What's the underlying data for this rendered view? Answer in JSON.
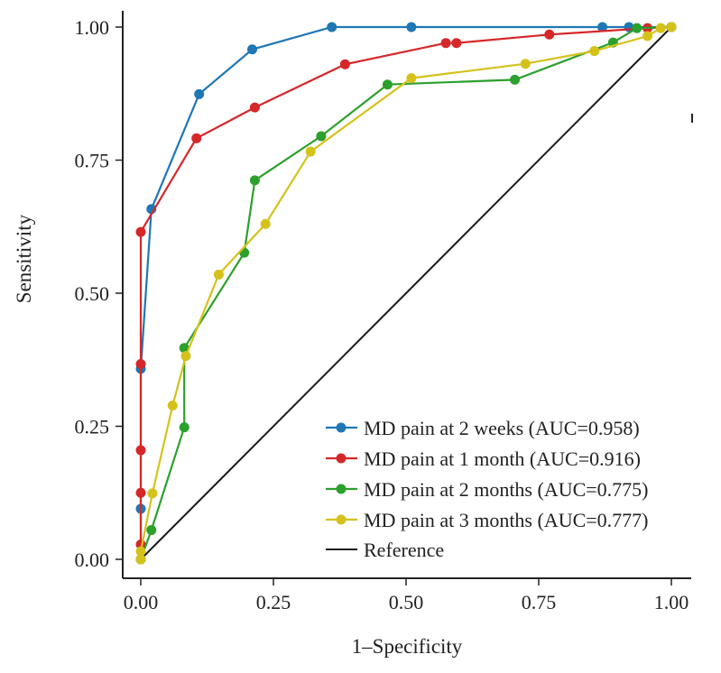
{
  "chart_data": {
    "type": "line",
    "title": "",
    "xlabel": "1–Specificity",
    "ylabel": "Sensitivity",
    "xlim": [
      0,
      1
    ],
    "ylim": [
      0,
      1
    ],
    "x_ticks": [
      "0.00",
      "0.25",
      "0.50",
      "0.75",
      "1.00"
    ],
    "y_ticks": [
      "0.00",
      "0.25",
      "0.50",
      "0.75",
      "1.00"
    ],
    "grid": false,
    "legend_position": "bottom-right",
    "series": [
      {
        "name": "MD pain at 2 weeks (AUC=0.958)",
        "color": "#1f77b4",
        "x": [
          0.0,
          0.0,
          0.0,
          0.02,
          0.11,
          0.21,
          0.36,
          0.51,
          0.87,
          0.92,
          1.0
        ],
        "y": [
          0.0,
          0.095,
          0.358,
          0.658,
          0.874,
          0.958,
          1.0,
          1.0,
          1.0,
          1.0,
          1.0
        ]
      },
      {
        "name": "MD pain at 1 month (AUC=0.916)",
        "color": "#d62728",
        "x": [
          0.0,
          0.0,
          0.0,
          0.0,
          0.0,
          0.0,
          0.105,
          0.215,
          0.385,
          0.575,
          0.595,
          0.77,
          0.955,
          1.0
        ],
        "y": [
          0.0,
          0.028,
          0.125,
          0.205,
          0.367,
          0.615,
          0.791,
          0.849,
          0.93,
          0.97,
          0.97,
          0.986,
          0.998,
          1.0
        ]
      },
      {
        "name": "MD pain at 2 months (AUC=0.775)",
        "color": "#2ca02c",
        "x": [
          0.0,
          0.02,
          0.082,
          0.082,
          0.195,
          0.215,
          0.34,
          0.465,
          0.705,
          0.89,
          0.935,
          1.0
        ],
        "y": [
          0.0,
          0.055,
          0.248,
          0.397,
          0.576,
          0.712,
          0.795,
          0.892,
          0.901,
          0.971,
          0.998,
          1.0
        ]
      },
      {
        "name": "MD pain at 3 months (AUC=0.777)",
        "color": "#d4c21a",
        "x": [
          0.0,
          0.0,
          0.022,
          0.06,
          0.085,
          0.147,
          0.235,
          0.32,
          0.51,
          0.725,
          0.855,
          0.955,
          0.98,
          1.0
        ],
        "y": [
          0.0,
          0.015,
          0.124,
          0.289,
          0.382,
          0.535,
          0.63,
          0.766,
          0.904,
          0.931,
          0.955,
          0.983,
          0.998,
          1.0
        ]
      }
    ],
    "reference": {
      "name": "Reference",
      "color": "#1a1a1a",
      "x": [
        0,
        1
      ],
      "y": [
        0,
        1
      ]
    }
  }
}
